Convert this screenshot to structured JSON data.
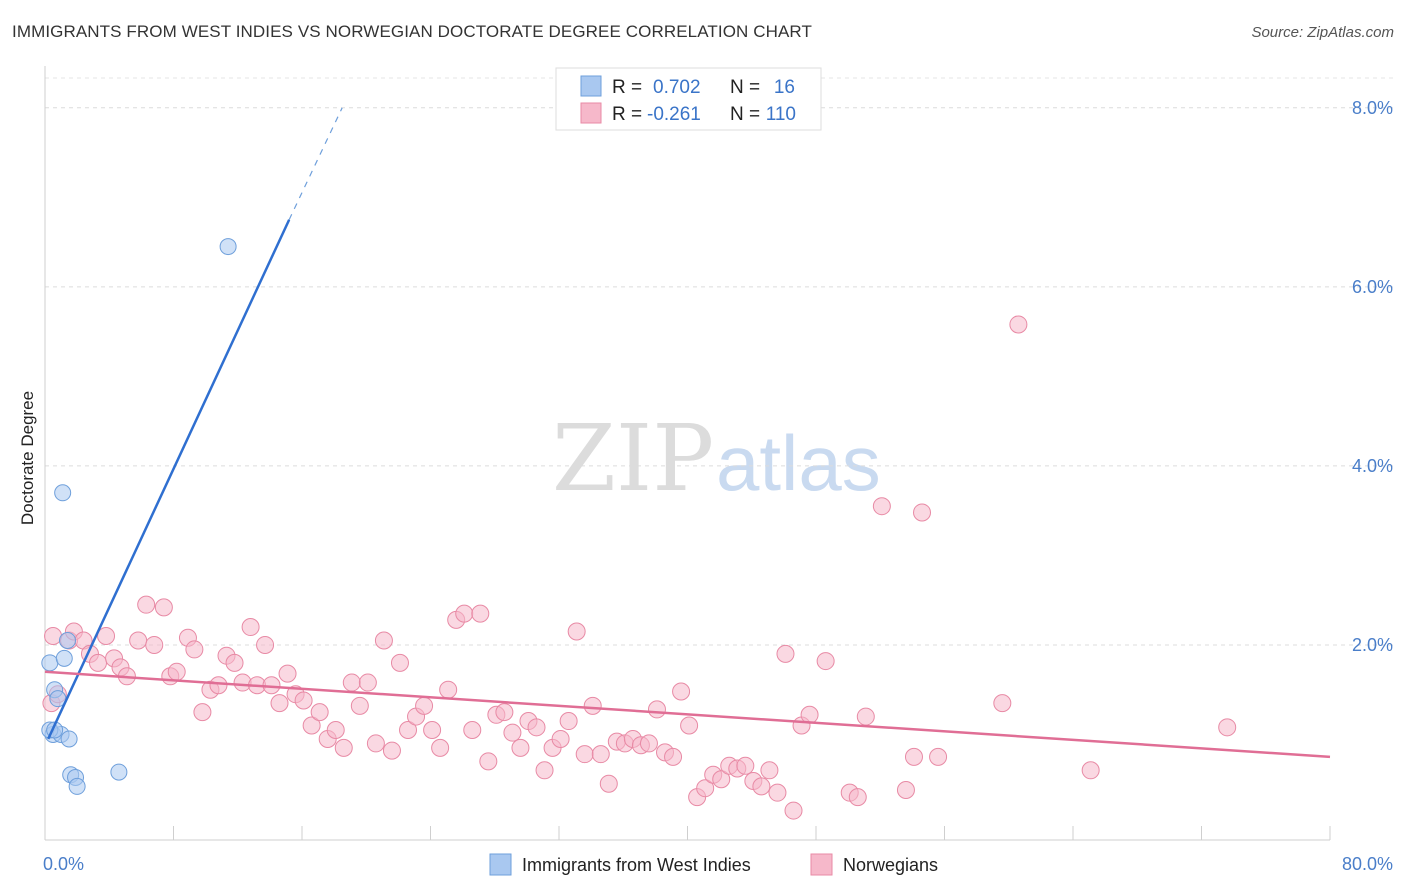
{
  "title": "IMMIGRANTS FROM WEST INDIES VS NORWEGIAN DOCTORATE DEGREE CORRELATION CHART",
  "source": "Source: ZipAtlas.com",
  "watermark": {
    "zip": "ZIP",
    "atlas": "atlas"
  },
  "legend": {
    "rows": [
      {
        "r_label": "R =",
        "r_value": "0.702",
        "n_label": "N =",
        "n_value": "16",
        "color": "#a9c8f0"
      },
      {
        "r_label": "R =",
        "r_value": "-0.261",
        "n_label": "N =",
        "n_value": "110",
        "color": "#f6b8ca"
      }
    ]
  },
  "chart_data": {
    "type": "scatter",
    "title": "IMMIGRANTS FROM WEST INDIES VS NORWEGIAN DOCTORATE DEGREE CORRELATION CHART",
    "xlabel": "",
    "ylabel": "Doctorate Degree",
    "xlim": [
      0,
      80
    ],
    "ylim": [
      0,
      8.4
    ],
    "x_tick_labels": [
      "0.0%",
      "80.0%"
    ],
    "y_ticks": [
      2,
      4,
      6,
      8
    ],
    "y_tick_labels": [
      "2.0%",
      "4.0%",
      "6.0%",
      "8.0%"
    ],
    "grid": true,
    "series": [
      {
        "name": "Immigrants from West Indies",
        "color": "#a9c8f0",
        "stroke": "#6e9fdb",
        "points": [
          [
            0.3,
            1.8
          ],
          [
            0.5,
            1.0
          ],
          [
            0.6,
            1.5
          ],
          [
            0.8,
            1.4
          ],
          [
            1.0,
            1.0
          ],
          [
            1.1,
            3.7
          ],
          [
            1.2,
            1.85
          ],
          [
            1.4,
            2.05
          ],
          [
            1.5,
            0.95
          ],
          [
            1.6,
            0.55
          ],
          [
            1.9,
            0.52
          ],
          [
            2.0,
            0.42
          ],
          [
            4.6,
            0.58
          ],
          [
            11.4,
            6.45
          ],
          [
            0.3,
            1.05
          ],
          [
            0.6,
            1.05
          ]
        ],
        "trend": {
          "x": [
            0.2,
            15.2
          ],
          "y": [
            0.95,
            6.75
          ],
          "dashed_x": [
            15.2,
            18.5
          ],
          "dashed_y": [
            6.75,
            8.0
          ]
        }
      },
      {
        "name": "Norwegians",
        "color": "#f6b8ca",
        "stroke": "#e88aa5",
        "points": [
          [
            0.5,
            2.1
          ],
          [
            0.4,
            1.35
          ],
          [
            0.8,
            1.45
          ],
          [
            1.5,
            2.05
          ],
          [
            1.8,
            2.15
          ],
          [
            2.4,
            2.05
          ],
          [
            2.8,
            1.9
          ],
          [
            3.3,
            1.8
          ],
          [
            3.8,
            2.1
          ],
          [
            4.3,
            1.85
          ],
          [
            4.7,
            1.75
          ],
          [
            5.1,
            1.65
          ],
          [
            5.8,
            2.05
          ],
          [
            6.3,
            2.45
          ],
          [
            6.8,
            2.0
          ],
          [
            7.4,
            2.42
          ],
          [
            7.8,
            1.65
          ],
          [
            8.2,
            1.7
          ],
          [
            8.9,
            2.08
          ],
          [
            9.3,
            1.95
          ],
          [
            9.8,
            1.25
          ],
          [
            10.3,
            1.5
          ],
          [
            10.8,
            1.55
          ],
          [
            11.3,
            1.88
          ],
          [
            11.8,
            1.8
          ],
          [
            12.3,
            1.58
          ],
          [
            12.8,
            2.2
          ],
          [
            13.2,
            1.55
          ],
          [
            13.7,
            2.0
          ],
          [
            14.1,
            1.55
          ],
          [
            14.6,
            1.35
          ],
          [
            15.1,
            1.68
          ],
          [
            15.6,
            1.45
          ],
          [
            16.1,
            1.38
          ],
          [
            16.6,
            1.1
          ],
          [
            17.1,
            1.25
          ],
          [
            17.6,
            0.95
          ],
          [
            18.1,
            1.05
          ],
          [
            18.6,
            0.85
          ],
          [
            19.1,
            1.58
          ],
          [
            19.6,
            1.32
          ],
          [
            20.1,
            1.58
          ],
          [
            20.6,
            0.9
          ],
          [
            21.1,
            2.05
          ],
          [
            21.6,
            0.82
          ],
          [
            22.1,
            1.8
          ],
          [
            22.6,
            1.05
          ],
          [
            23.1,
            1.2
          ],
          [
            23.6,
            1.32
          ],
          [
            24.1,
            1.05
          ],
          [
            24.6,
            0.85
          ],
          [
            25.1,
            1.5
          ],
          [
            25.6,
            2.28
          ],
          [
            26.1,
            2.35
          ],
          [
            26.6,
            1.05
          ],
          [
            27.1,
            2.35
          ],
          [
            27.6,
            0.7
          ],
          [
            28.1,
            1.22
          ],
          [
            28.6,
            1.25
          ],
          [
            29.1,
            1.02
          ],
          [
            29.6,
            0.85
          ],
          [
            30.1,
            1.15
          ],
          [
            30.6,
            1.08
          ],
          [
            31.1,
            0.6
          ],
          [
            31.6,
            0.85
          ],
          [
            32.1,
            0.95
          ],
          [
            32.6,
            1.15
          ],
          [
            33.1,
            2.15
          ],
          [
            33.6,
            0.78
          ],
          [
            34.1,
            1.32
          ],
          [
            34.6,
            0.78
          ],
          [
            35.1,
            0.45
          ],
          [
            35.6,
            0.92
          ],
          [
            36.1,
            0.9
          ],
          [
            36.6,
            0.95
          ],
          [
            37.1,
            0.88
          ],
          [
            37.6,
            0.9
          ],
          [
            38.1,
            1.28
          ],
          [
            38.6,
            0.8
          ],
          [
            39.1,
            0.75
          ],
          [
            39.6,
            1.48
          ],
          [
            40.1,
            1.1
          ],
          [
            40.6,
            0.3
          ],
          [
            41.1,
            0.4
          ],
          [
            41.6,
            0.55
          ],
          [
            42.1,
            0.5
          ],
          [
            42.6,
            0.65
          ],
          [
            43.1,
            0.62
          ],
          [
            43.6,
            0.65
          ],
          [
            44.1,
            0.48
          ],
          [
            44.6,
            0.42
          ],
          [
            45.1,
            0.6
          ],
          [
            45.6,
            0.35
          ],
          [
            46.1,
            1.9
          ],
          [
            46.6,
            0.15
          ],
          [
            47.1,
            1.1
          ],
          [
            47.6,
            1.22
          ],
          [
            48.6,
            1.82
          ],
          [
            50.1,
            0.35
          ],
          [
            50.6,
            0.3
          ],
          [
            51.1,
            1.2
          ],
          [
            53.6,
            0.38
          ],
          [
            54.1,
            0.75
          ],
          [
            52.1,
            3.55
          ],
          [
            54.6,
            3.48
          ],
          [
            55.6,
            0.75
          ],
          [
            59.6,
            1.35
          ],
          [
            60.6,
            5.58
          ],
          [
            65.1,
            0.6
          ],
          [
            73.6,
            1.08
          ]
        ],
        "trend": {
          "x": [
            0.0,
            80.0
          ],
          "y": [
            1.7,
            0.75
          ]
        }
      }
    ]
  }
}
